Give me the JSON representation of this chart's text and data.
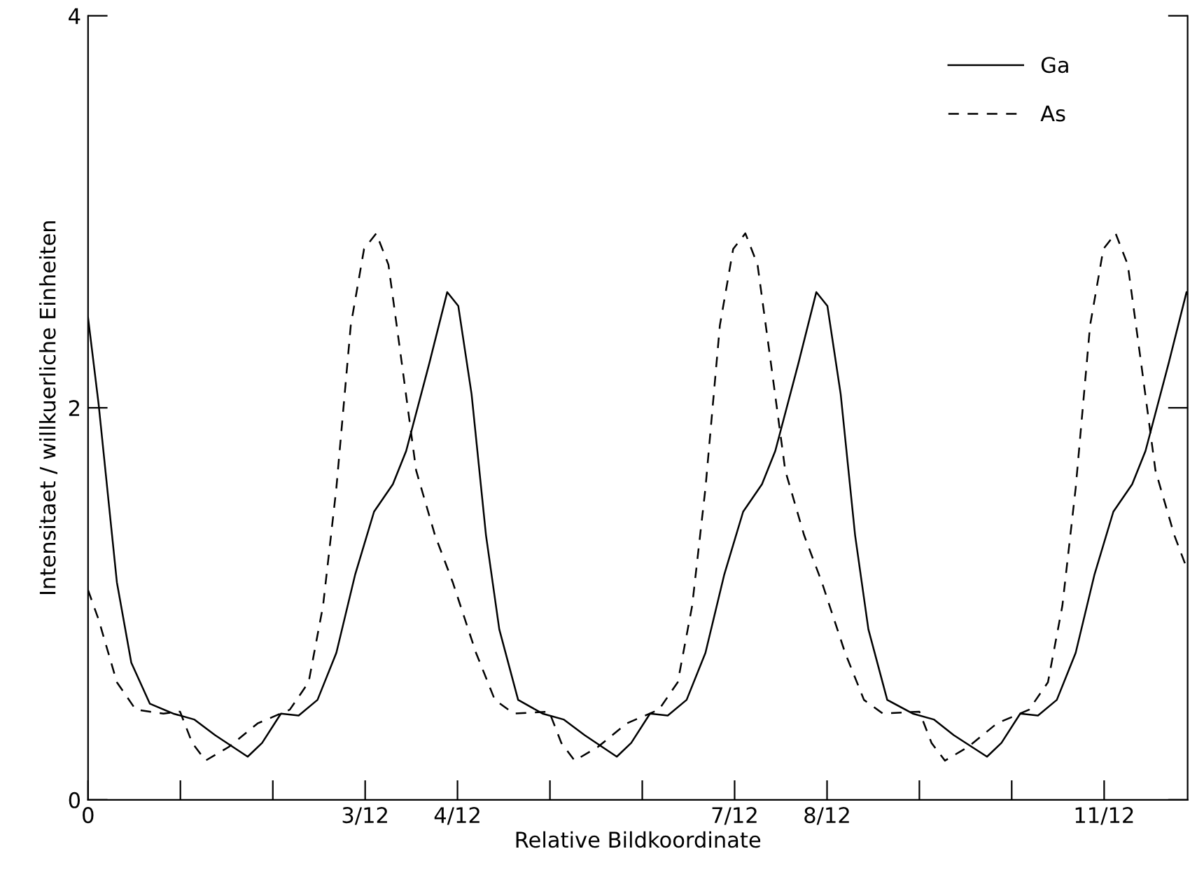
{
  "chart_data": {
    "type": "line",
    "xlabel": "Relative Bildkoordinate",
    "ylabel": "Intensitaet / willkuerliche Einheiten",
    "xlim": [
      0,
      0.992
    ],
    "ylim": [
      0,
      4
    ],
    "yticks": [
      0,
      2,
      4
    ],
    "xticks": [
      0,
      {
        "value": 0.0833,
        "label": null
      },
      {
        "value": 0.1667,
        "label": null
      },
      {
        "value": 0.25,
        "label": "3/12"
      },
      {
        "value": 0.3333,
        "label": "4/12"
      },
      {
        "value": 0.4167,
        "label": null
      },
      {
        "value": 0.5,
        "label": null
      },
      {
        "value": 0.5833,
        "label": "7/12"
      },
      {
        "value": 0.6667,
        "label": "8/12"
      },
      {
        "value": 0.75,
        "label": null
      },
      {
        "value": 0.8333,
        "label": null
      },
      {
        "value": 0.9167,
        "label": "11/12"
      }
    ],
    "legend": "top right",
    "series": [
      {
        "name": "Ga",
        "color": "#000000",
        "line_style": "solid",
        "x": [
          0,
          0.0095,
          0.026,
          0.039,
          0.0558,
          0.0768,
          0.0957,
          0.1146,
          0.144,
          0.157,
          0.174,
          0.19,
          0.207,
          0.224,
          0.241,
          0.258,
          0.275,
          0.287,
          0.308,
          0.324,
          0.334,
          0.346,
          0.359,
          0.371,
          0.388,
          0.41,
          0.429,
          0.448,
          0.477,
          0.49,
          0.507,
          0.523,
          0.54,
          0.557,
          0.574,
          0.591,
          0.608,
          0.62,
          0.641,
          0.657,
          0.667,
          0.679,
          0.692,
          0.704,
          0.721,
          0.744,
          0.763,
          0.781,
          0.811,
          0.824,
          0.841,
          0.857,
          0.874,
          0.891,
          0.908,
          0.925,
          0.942,
          0.954,
          0.975,
          0.991,
          0.992
        ],
        "values": [
          2.46,
          2.02,
          1.11,
          0.7,
          0.49,
          0.44,
          0.41,
          0.33,
          0.22,
          0.29,
          0.44,
          0.43,
          0.51,
          0.75,
          1.15,
          1.47,
          1.61,
          1.78,
          2.23,
          2.59,
          2.52,
          2.07,
          1.35,
          0.87,
          0.51,
          0.44,
          0.41,
          0.33,
          0.22,
          0.29,
          0.44,
          0.43,
          0.51,
          0.75,
          1.15,
          1.47,
          1.61,
          1.78,
          2.23,
          2.59,
          2.52,
          2.07,
          1.35,
          0.87,
          0.51,
          0.44,
          0.41,
          0.33,
          0.22,
          0.29,
          0.44,
          0.43,
          0.51,
          0.75,
          1.15,
          1.47,
          1.61,
          1.78,
          2.23,
          2.59,
          2.58
        ]
      },
      {
        "name": "As",
        "color": "#000000",
        "line_style": "dashed",
        "x": [
          0,
          0.0095,
          0.026,
          0.043,
          0.068,
          0.083,
          0.094,
          0.106,
          0.127,
          0.153,
          0.182,
          0.199,
          0.212,
          0.224,
          0.237,
          0.249,
          0.26,
          0.271,
          0.283,
          0.296,
          0.313,
          0.329,
          0.35,
          0.367,
          0.384,
          0.416,
          0.427,
          0.439,
          0.46,
          0.486,
          0.515,
          0.532,
          0.545,
          0.557,
          0.57,
          0.582,
          0.593,
          0.604,
          0.616,
          0.629,
          0.646,
          0.662,
          0.683,
          0.7,
          0.717,
          0.75,
          0.761,
          0.773,
          0.794,
          0.82,
          0.849,
          0.866,
          0.879,
          0.891,
          0.904,
          0.916,
          0.927,
          0.938,
          0.95,
          0.963,
          0.98,
          0.992
        ],
        "values": [
          1.07,
          0.92,
          0.6,
          0.46,
          0.44,
          0.45,
          0.29,
          0.2,
          0.27,
          0.39,
          0.46,
          0.6,
          0.99,
          1.59,
          2.42,
          2.81,
          2.89,
          2.73,
          2.23,
          1.68,
          1.35,
          1.11,
          0.75,
          0.51,
          0.44,
          0.45,
          0.29,
          0.2,
          0.27,
          0.39,
          0.46,
          0.6,
          0.99,
          1.59,
          2.42,
          2.81,
          2.89,
          2.73,
          2.23,
          1.68,
          1.35,
          1.11,
          0.75,
          0.51,
          0.44,
          0.45,
          0.29,
          0.2,
          0.27,
          0.39,
          0.46,
          0.6,
          0.99,
          1.59,
          2.42,
          2.81,
          2.89,
          2.73,
          2.23,
          1.68,
          1.35,
          1.17
        ]
      }
    ]
  }
}
